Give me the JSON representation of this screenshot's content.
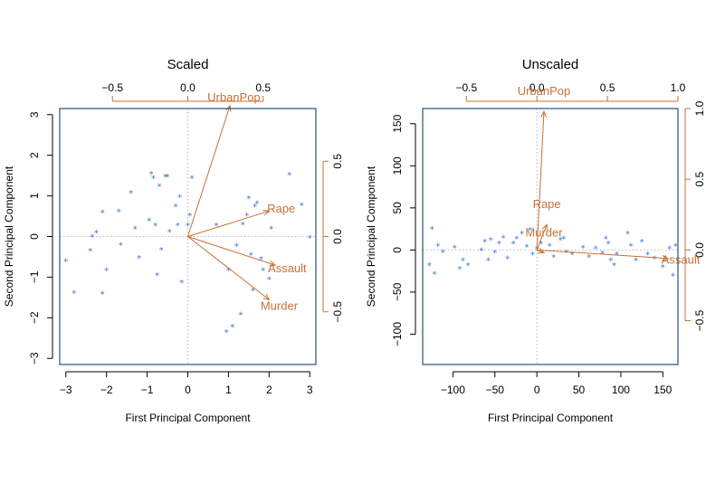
{
  "colors": {
    "points": "#3b78d4",
    "loadings": "#c87137",
    "frame": "#2a4f80",
    "guides": "#b8b8b8"
  },
  "chart_data": [
    {
      "type": "scatter",
      "subtype": "biplot",
      "title": "Scaled",
      "xlabel": "First Principal Component",
      "ylabel": "Second Principal Component",
      "xlim": [
        -3.15,
        3.15
      ],
      "ylim": [
        -3.15,
        3.15
      ],
      "xticks": [
        -3,
        -2,
        -1,
        0,
        1,
        2,
        3
      ],
      "yticks": [
        -3,
        -2,
        -1,
        0,
        1,
        2,
        3
      ],
      "loading_xlim": [
        -0.85,
        0.85
      ],
      "loading_ylim": [
        -0.85,
        0.85
      ],
      "loading_ticks_top": [
        -0.5,
        0.0,
        0.5
      ],
      "loading_ticks_right": [
        -0.5,
        0.0,
        0.5
      ],
      "point_marker": "*",
      "points": [
        [
          -3.0,
          -0.6
        ],
        [
          -2.8,
          -1.38
        ],
        [
          -2.4,
          -0.35
        ],
        [
          -2.35,
          0.0
        ],
        [
          -2.25,
          0.1
        ],
        [
          -2.1,
          0.6
        ],
        [
          -2.1,
          -1.4
        ],
        [
          -2.0,
          -0.82
        ],
        [
          -1.7,
          0.62
        ],
        [
          -1.65,
          -0.2
        ],
        [
          -1.4,
          1.08
        ],
        [
          -1.3,
          0.2
        ],
        [
          -1.2,
          -0.52
        ],
        [
          -0.95,
          0.4
        ],
        [
          -0.9,
          1.55
        ],
        [
          -0.85,
          1.45
        ],
        [
          -0.8,
          0.28
        ],
        [
          -0.75,
          -0.95
        ],
        [
          -0.7,
          1.25
        ],
        [
          -0.65,
          -0.32
        ],
        [
          -0.55,
          1.48
        ],
        [
          -0.5,
          1.48
        ],
        [
          -0.45,
          0.12
        ],
        [
          -0.3,
          0.75
        ],
        [
          -0.25,
          0.28
        ],
        [
          -0.2,
          0.98
        ],
        [
          -0.15,
          -1.12
        ],
        [
          0.0,
          0.28
        ],
        [
          0.05,
          0.52
        ],
        [
          0.1,
          1.45
        ],
        [
          0.7,
          0.28
        ],
        [
          0.95,
          -2.35
        ],
        [
          1.0,
          -0.82
        ],
        [
          1.1,
          -2.22
        ],
        [
          1.2,
          -0.22
        ],
        [
          1.3,
          -1.92
        ],
        [
          1.35,
          0.3
        ],
        [
          1.45,
          0.52
        ],
        [
          1.5,
          0.95
        ],
        [
          1.55,
          -0.45
        ],
        [
          1.6,
          -1.32
        ],
        [
          1.65,
          0.75
        ],
        [
          1.7,
          0.82
        ],
        [
          1.8,
          -0.55
        ],
        [
          1.85,
          -0.82
        ],
        [
          2.0,
          -1.05
        ],
        [
          2.05,
          0.2
        ],
        [
          2.5,
          1.52
        ],
        [
          2.8,
          0.78
        ],
        [
          3.0,
          -0.02
        ]
      ],
      "loadings": [
        {
          "name": "UrbanPop",
          "x": 0.28,
          "y": 0.87
        },
        {
          "name": "Rape",
          "x": 0.54,
          "y": 0.17
        },
        {
          "name": "Assault",
          "x": 0.58,
          "y": -0.19
        },
        {
          "name": "Murder",
          "x": 0.54,
          "y": -0.42
        }
      ]
    },
    {
      "type": "scatter",
      "subtype": "biplot",
      "title": "Unscaled",
      "xlabel": "First Principal Component",
      "ylabel": "Second Principal Component",
      "xlim": [
        -136,
        168
      ],
      "ylim": [
        -136,
        168
      ],
      "xticks": [
        -100,
        -50,
        0,
        50,
        100,
        150
      ],
      "yticks": [
        -100,
        -50,
        0,
        50,
        100,
        150
      ],
      "loading_xlim": [
        -0.81,
        1.0
      ],
      "loading_ylim": [
        -0.81,
        1.0
      ],
      "loading_ticks_top": [
        -0.5,
        0.0,
        0.5,
        1.0
      ],
      "loading_ticks_right": [
        -0.5,
        0.0,
        0.5,
        1.0
      ],
      "point_marker": "*",
      "points": [
        [
          -125,
          25
        ],
        [
          -128,
          -18
        ],
        [
          -122,
          -28
        ],
        [
          -118,
          5
        ],
        [
          -112,
          -2
        ],
        [
          -98,
          3
        ],
        [
          -92,
          -22
        ],
        [
          -88,
          -12
        ],
        [
          -82,
          -18
        ],
        [
          -66,
          0
        ],
        [
          -62,
          10
        ],
        [
          -58,
          -12
        ],
        [
          -55,
          12
        ],
        [
          -50,
          -3
        ],
        [
          -45,
          8
        ],
        [
          -40,
          15
        ],
        [
          -35,
          -10
        ],
        [
          -28,
          8
        ],
        [
          -24,
          14
        ],
        [
          -18,
          20
        ],
        [
          -12,
          4
        ],
        [
          -8,
          24
        ],
        [
          -5,
          -5
        ],
        [
          0,
          2
        ],
        [
          5,
          8
        ],
        [
          15,
          5
        ],
        [
          20,
          -8
        ],
        [
          28,
          12
        ],
        [
          32,
          14
        ],
        [
          35,
          -2
        ],
        [
          42,
          -5
        ],
        [
          55,
          3
        ],
        [
          62,
          -8
        ],
        [
          70,
          2
        ],
        [
          78,
          -4
        ],
        [
          82,
          14
        ],
        [
          85,
          8
        ],
        [
          88,
          -12
        ],
        [
          92,
          -18
        ],
        [
          95,
          -5
        ],
        [
          108,
          20
        ],
        [
          112,
          5
        ],
        [
          118,
          -12
        ],
        [
          125,
          10
        ],
        [
          132,
          -5
        ],
        [
          140,
          -10
        ],
        [
          150,
          -20
        ],
        [
          158,
          2
        ],
        [
          162,
          -30
        ],
        [
          165,
          5
        ]
      ],
      "loadings": [
        {
          "name": "UrbanPop",
          "x": 0.05,
          "y": 0.98
        },
        {
          "name": "Rape",
          "x": 0.07,
          "y": 0.18
        },
        {
          "name": "Assault",
          "x": 0.93,
          "y": -0.06
        },
        {
          "name": "Murder",
          "x": 0.05,
          "y": -0.02
        }
      ]
    }
  ]
}
